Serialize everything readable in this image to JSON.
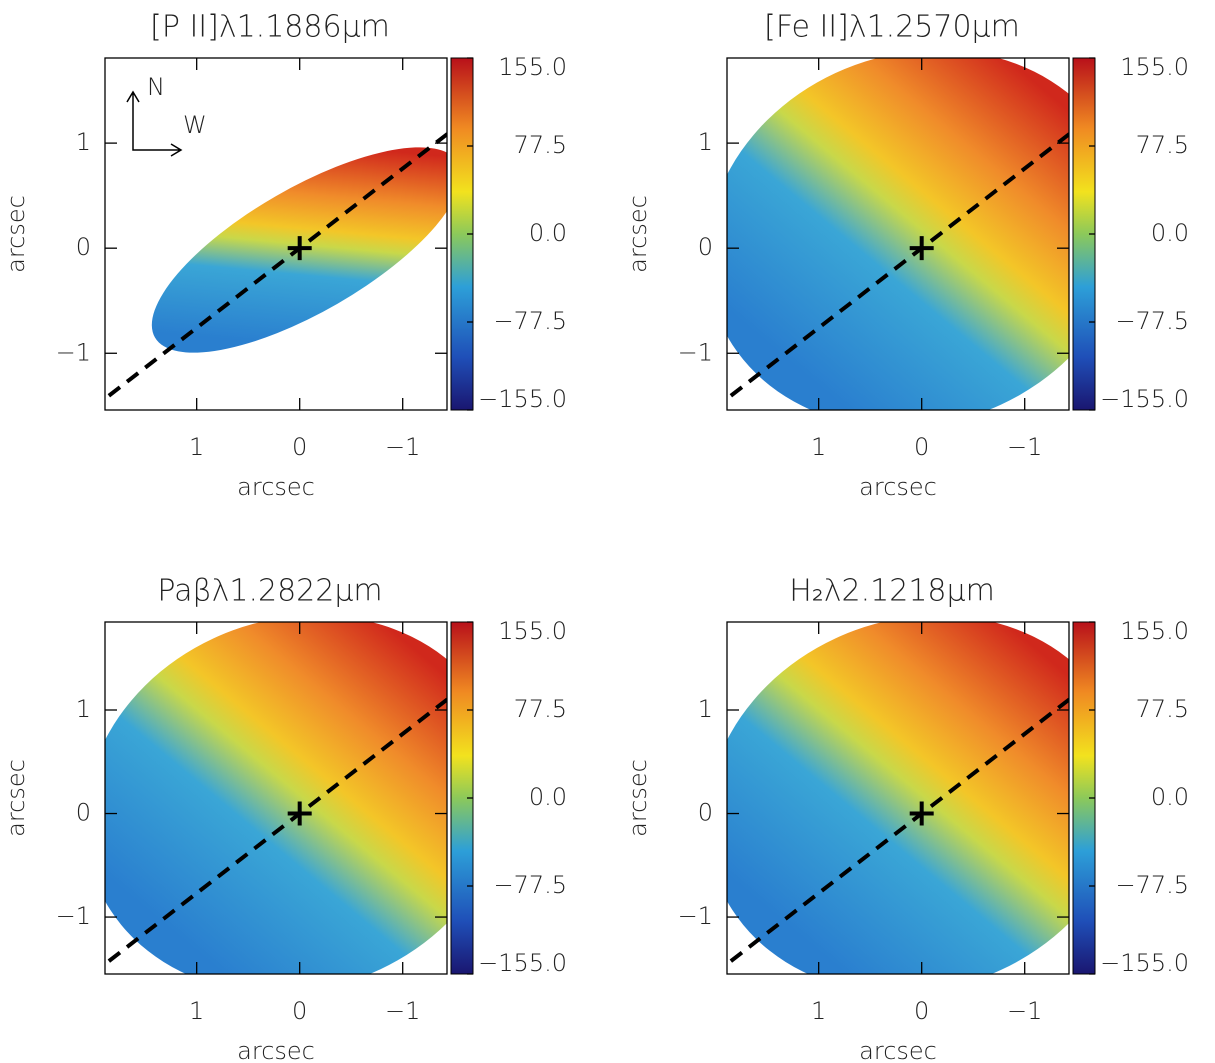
{
  "chart_data": [
    {
      "type": "heatmap",
      "title": "[P II]λ1.1886μm",
      "xlabel": "arcsec",
      "ylabel": "arcsec",
      "xlim": [
        1.89,
        -1.43
      ],
      "ylim": [
        -1.54,
        1.81
      ],
      "xticks": [
        1,
        0,
        {
          "value": -1,
          "label": "−1"
        }
      ],
      "yticks": [
        {
          "value": -1,
          "label": "−1"
        },
        0,
        1
      ],
      "clim": [
        -155,
        155
      ],
      "cticks": [
        {
          "value": -155,
          "label": "−155.0"
        },
        {
          "value": -77.5,
          "label": "−77.5"
        },
        {
          "value": 0,
          "label": "0.0"
        },
        {
          "value": 77.5,
          "label": "77.5"
        },
        {
          "value": 155,
          "label": "155.0"
        }
      ],
      "annotations": [
        "N",
        "W"
      ]
    },
    {
      "type": "heatmap",
      "title": "[Fe II]λ1.2570μm",
      "xlabel": "arcsec",
      "ylabel": "arcsec",
      "xlim": [
        1.89,
        -1.43
      ],
      "ylim": [
        -1.54,
        1.81
      ],
      "xticks": [
        1,
        0,
        {
          "value": -1,
          "label": "−1"
        }
      ],
      "yticks": [
        {
          "value": -1,
          "label": "−1"
        },
        0,
        1
      ],
      "clim": [
        -155,
        155
      ],
      "cticks": [
        {
          "value": -155,
          "label": "−155.0"
        },
        {
          "value": -77.5,
          "label": "−77.5"
        },
        {
          "value": 0,
          "label": "0.0"
        },
        {
          "value": 77.5,
          "label": "77.5"
        },
        {
          "value": 155,
          "label": "155.0"
        }
      ]
    },
    {
      "type": "heatmap",
      "title": "Paβλ1.2822μm",
      "xlabel": "arcsec",
      "ylabel": "arcsec",
      "xlim": [
        1.89,
        -1.43
      ],
      "ylim": [
        -1.55,
        1.85
      ],
      "xticks": [
        1,
        0,
        {
          "value": -1,
          "label": "−1"
        }
      ],
      "yticks": [
        {
          "value": -1,
          "label": "−1"
        },
        0,
        1
      ],
      "clim": [
        -155,
        155
      ],
      "cticks": [
        {
          "value": -155,
          "label": "−155.0"
        },
        {
          "value": -77.5,
          "label": "−77.5"
        },
        {
          "value": 0,
          "label": "0.0"
        },
        {
          "value": 77.5,
          "label": "77.5"
        },
        {
          "value": 155,
          "label": "155.0"
        }
      ]
    },
    {
      "type": "heatmap",
      "title": "H₂λ2.1218μm",
      "xlabel": "arcsec",
      "ylabel": "arcsec",
      "xlim": [
        1.89,
        -1.43
      ],
      "ylim": [
        -1.55,
        1.85
      ],
      "xticks": [
        1,
        0,
        {
          "value": -1,
          "label": "−1"
        }
      ],
      "yticks": [
        {
          "value": -1,
          "label": "−1"
        },
        0,
        1
      ],
      "clim": [
        -155,
        155
      ],
      "cticks": [
        {
          "value": -155,
          "label": "−155.0"
        },
        {
          "value": -77.5,
          "label": "−77.5"
        },
        {
          "value": 0,
          "label": "0.0"
        },
        {
          "value": 77.5,
          "label": "77.5"
        },
        {
          "value": 155,
          "label": "155.0"
        }
      ]
    }
  ]
}
